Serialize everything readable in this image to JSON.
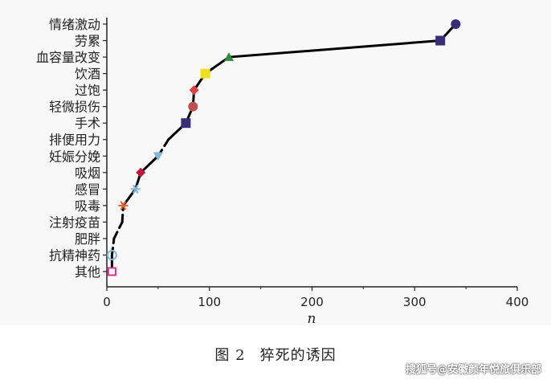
{
  "chart_data": {
    "type": "line",
    "xlabel": "n",
    "xlim": [
      0,
      400
    ],
    "xticks": [
      "0",
      "100",
      "200",
      "300",
      "400"
    ],
    "categories": [
      "其他",
      "抗精神药",
      "肥胖",
      "注射疫苗",
      "吸毒",
      "感冒",
      "吸烟",
      "妊娠分娩",
      "排便用力",
      "手术",
      "轻微损伤",
      "过饱",
      "饮酒",
      "血容量改变",
      "劳累",
      "情绪激动"
    ],
    "values": [
      5,
      5,
      7,
      15,
      16,
      28,
      33,
      50,
      60,
      77,
      84,
      85,
      96,
      119,
      325,
      340
    ],
    "markers": [
      {
        "shape": "square-open",
        "color": "#e0308a"
      },
      {
        "shape": "circle-open",
        "color": "#7fb8d8"
      },
      {
        "shape": "none",
        "color": "#000000"
      },
      {
        "shape": "none",
        "color": "#000000"
      },
      {
        "shape": "star",
        "color": "#e06030"
      },
      {
        "shape": "star",
        "color": "#7fb8d8"
      },
      {
        "shape": "diamond",
        "color": "#c0143c"
      },
      {
        "shape": "triangle-down",
        "color": "#7fb8d8"
      },
      {
        "shape": "none",
        "color": "#000000"
      },
      {
        "shape": "square",
        "color": "#3a2d78"
      },
      {
        "shape": "circle",
        "color": "#c05050"
      },
      {
        "shape": "diamond",
        "color": "#e04040"
      },
      {
        "shape": "square",
        "color": "#f0e020"
      },
      {
        "shape": "triangle-up",
        "color": "#2e8b3a"
      },
      {
        "shape": "square",
        "color": "#3a2d78"
      },
      {
        "shape": "circle",
        "color": "#3a2d78"
      }
    ],
    "dashed_segments": [
      1,
      2,
      3,
      7
    ],
    "line_color": "#000000"
  },
  "caption": {
    "label": "图 2",
    "title": "猝死的诱因"
  },
  "watermark": "搜狐号@安徽颜年悦旅俱乐部"
}
